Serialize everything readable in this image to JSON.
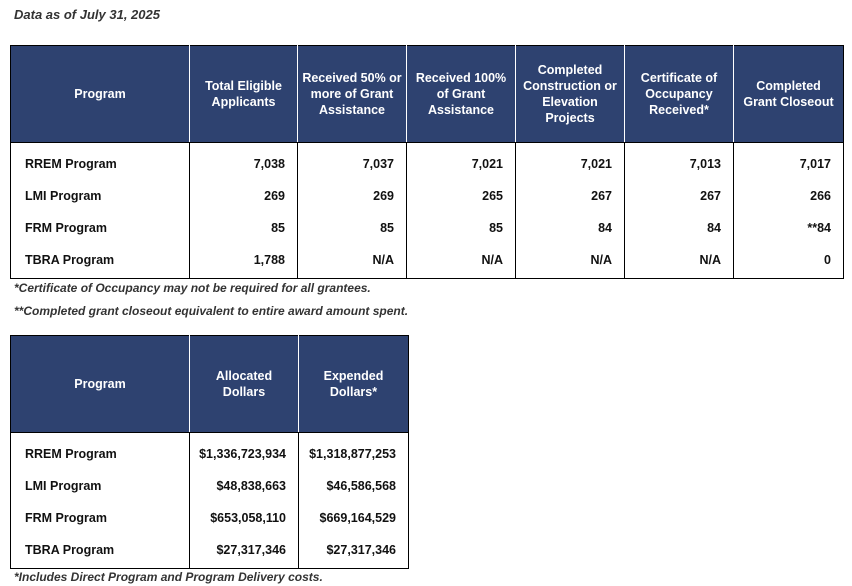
{
  "as_of": "Data as of July 31, 2025",
  "progress_table": {
    "headers": [
      "Program",
      "Total Eligible Applicants",
      "Received 50% or more of Grant Assistance",
      "Received 100% of Grant Assistance",
      "Completed Construction or Elevation Projects",
      "Certificate of Occupancy Received*",
      "Completed Grant Closeout"
    ],
    "rows": [
      [
        "RREM Program",
        "7,038",
        "7,037",
        "7,021",
        "7,021",
        "7,013",
        "7,017"
      ],
      [
        "LMI Program",
        "269",
        "269",
        "265",
        "267",
        "267",
        "266"
      ],
      [
        "FRM Program",
        "85",
        "85",
        "85",
        "84",
        "84",
        "**84"
      ],
      [
        "TBRA Program",
        "1,788",
        "N/A",
        "N/A",
        "N/A",
        "N/A",
        "0"
      ]
    ],
    "footnotes": [
      "*Certificate of Occupancy may not be required for all grantees.",
      "**Completed grant closeout equivalent to entire award amount spent."
    ]
  },
  "dollars_table": {
    "headers": [
      "Program",
      "Allocated Dollars",
      "Expended Dollars*"
    ],
    "rows": [
      [
        "RREM Program",
        "$1,336,723,934",
        "$1,318,877,253"
      ],
      [
        "LMI Program",
        "$48,838,663",
        "$46,586,568"
      ],
      [
        "FRM Program",
        "$653,058,110",
        "$669,164,529"
      ],
      [
        "TBRA Program",
        "$27,317,346",
        "$27,317,346"
      ]
    ],
    "footnote": "*Includes Direct Program and Program Delivery costs."
  }
}
